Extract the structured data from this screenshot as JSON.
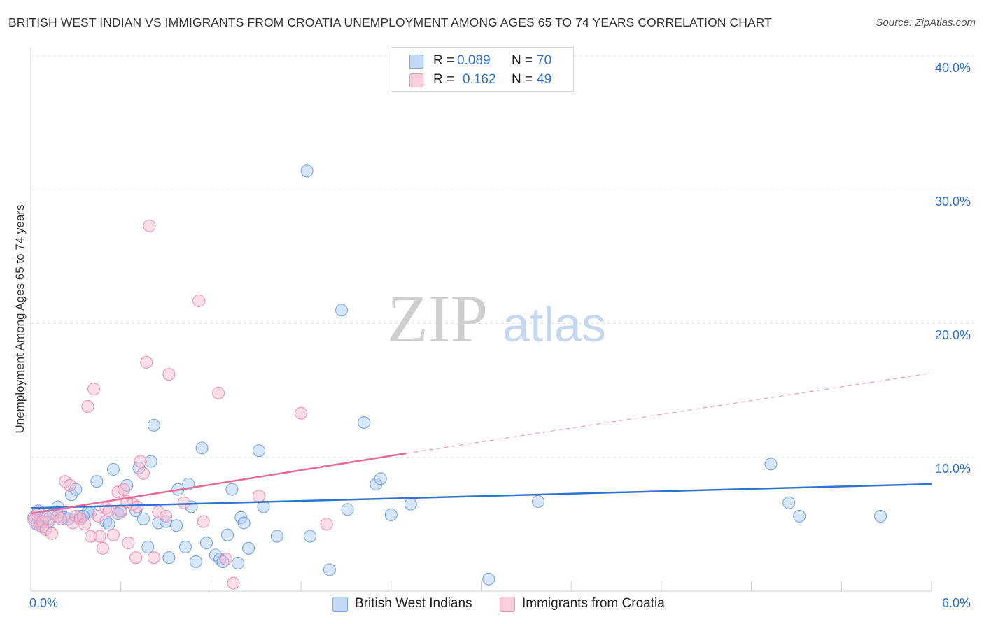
{
  "title": "BRITISH WEST INDIAN VS IMMIGRANTS FROM CROATIA UNEMPLOYMENT AMONG AGES 65 TO 74 YEARS CORRELATION CHART",
  "source": "Source: ZipAtlas.com",
  "watermark": {
    "zip": "ZIP",
    "atlas": "atlas"
  },
  "legend_top": {
    "rows": [
      {
        "r_label": "R =",
        "r_value": "0.089",
        "n_label": "N =",
        "n_value": "70",
        "color": "#a9c8f5"
      },
      {
        "r_label": "R =",
        "r_value": "0.162",
        "n_label": "N =",
        "n_value": "49",
        "color": "#f7b8cc"
      }
    ]
  },
  "legend_bottom": {
    "items": [
      {
        "label": "British West Indians",
        "color": "#a9c8f5"
      },
      {
        "label": "Immigrants from Croatia",
        "color": "#f7b8cc"
      }
    ]
  },
  "chart_data": {
    "type": "scatter",
    "title": "BRITISH WEST INDIAN VS IMMIGRANTS FROM CROATIA UNEMPLOYMENT AMONG AGES 65 TO 74 YEARS CORRELATION CHART",
    "xlabel": "",
    "ylabel": "Unemployment Among Ages 65 to 74 years",
    "xlim": [
      0,
      6
    ],
    "ylim": [
      0,
      40
    ],
    "x_tick_labels": [
      "0.0%",
      "6.0%"
    ],
    "y_tick_labels": [
      "10.0%",
      "20.0%",
      "30.0%",
      "40.0%"
    ],
    "y_ticks": [
      10,
      20,
      30,
      40
    ],
    "x_minor_ticks": [
      0.6,
      1.2,
      1.8,
      2.4,
      3.0,
      3.6,
      4.2,
      4.8,
      5.4,
      6.0
    ],
    "grid": true,
    "series": [
      {
        "name": "British West Indians",
        "color": "#a9c8f5",
        "stroke": "#6d9fe0",
        "trend": {
          "x0": 0,
          "y0": 6.2,
          "x1": 6,
          "y1": 8.0,
          "color": "#2f74d0",
          "dashed_from": null
        },
        "points": [
          [
            0.02,
            5.5
          ],
          [
            0.04,
            5.0
          ],
          [
            0.05,
            6.0
          ],
          [
            0.06,
            5.3
          ],
          [
            0.08,
            4.8
          ],
          [
            0.1,
            5.6
          ],
          [
            0.12,
            5.2
          ],
          [
            0.15,
            5.8
          ],
          [
            0.18,
            6.3
          ],
          [
            0.2,
            5.9
          ],
          [
            0.22,
            5.5
          ],
          [
            0.25,
            5.4
          ],
          [
            0.27,
            7.2
          ],
          [
            0.3,
            7.6
          ],
          [
            0.33,
            5.6
          ],
          [
            0.38,
            5.9
          ],
          [
            0.4,
            5.9
          ],
          [
            0.44,
            8.2
          ],
          [
            0.5,
            5.2
          ],
          [
            0.52,
            5.0
          ],
          [
            0.55,
            9.1
          ],
          [
            0.58,
            5.8
          ],
          [
            0.6,
            6.0
          ],
          [
            0.64,
            7.9
          ],
          [
            0.7,
            6.0
          ],
          [
            0.72,
            9.2
          ],
          [
            0.75,
            5.4
          ],
          [
            0.78,
            3.3
          ],
          [
            0.8,
            9.7
          ],
          [
            0.82,
            12.4
          ],
          [
            0.85,
            5.1
          ],
          [
            0.9,
            5.2
          ],
          [
            0.92,
            2.5
          ],
          [
            0.97,
            4.9
          ],
          [
            0.98,
            7.6
          ],
          [
            1.03,
            3.3
          ],
          [
            1.05,
            8.0
          ],
          [
            1.07,
            6.3
          ],
          [
            1.1,
            2.2
          ],
          [
            1.14,
            10.7
          ],
          [
            1.17,
            3.6
          ],
          [
            1.23,
            2.7
          ],
          [
            1.26,
            2.4
          ],
          [
            1.28,
            2.2
          ],
          [
            1.31,
            4.2
          ],
          [
            1.34,
            7.6
          ],
          [
            1.38,
            2.1
          ],
          [
            1.4,
            5.5
          ],
          [
            1.42,
            5.1
          ],
          [
            1.45,
            3.2
          ],
          [
            1.52,
            10.5
          ],
          [
            1.55,
            6.3
          ],
          [
            1.64,
            4.1
          ],
          [
            1.84,
            31.4
          ],
          [
            1.86,
            4.1
          ],
          [
            1.99,
            1.6
          ],
          [
            2.07,
            21.0
          ],
          [
            2.11,
            6.1
          ],
          [
            2.22,
            12.6
          ],
          [
            2.3,
            8.0
          ],
          [
            2.33,
            8.4
          ],
          [
            2.4,
            5.7
          ],
          [
            2.53,
            6.5
          ],
          [
            3.05,
            0.9
          ],
          [
            3.38,
            6.7
          ],
          [
            4.93,
            9.5
          ],
          [
            5.05,
            6.6
          ],
          [
            5.12,
            5.6
          ],
          [
            5.66,
            5.6
          ],
          [
            0.35,
            5.6
          ]
        ]
      },
      {
        "name": "Immigrants from Croatia",
        "color": "#f7b8cc",
        "stroke": "#eb8aa9",
        "trend": {
          "x0": 0,
          "y0": 5.8,
          "x1": 2.5,
          "y1": 10.3,
          "color": "#e56b94",
          "ext_x1": 6,
          "ext_y1": 16.3
        },
        "points": [
          [
            0.02,
            5.3
          ],
          [
            0.04,
            5.7
          ],
          [
            0.06,
            4.9
          ],
          [
            0.08,
            5.2
          ],
          [
            0.1,
            4.6
          ],
          [
            0.12,
            5.4
          ],
          [
            0.14,
            4.3
          ],
          [
            0.18,
            5.6
          ],
          [
            0.2,
            5.4
          ],
          [
            0.23,
            8.2
          ],
          [
            0.26,
            7.9
          ],
          [
            0.28,
            5.1
          ],
          [
            0.3,
            5.6
          ],
          [
            0.33,
            5.4
          ],
          [
            0.36,
            5.0
          ],
          [
            0.38,
            13.8
          ],
          [
            0.4,
            4.1
          ],
          [
            0.42,
            15.1
          ],
          [
            0.45,
            5.6
          ],
          [
            0.46,
            4.1
          ],
          [
            0.48,
            3.2
          ],
          [
            0.5,
            6.2
          ],
          [
            0.52,
            6.0
          ],
          [
            0.55,
            4.2
          ],
          [
            0.58,
            7.4
          ],
          [
            0.6,
            5.9
          ],
          [
            0.62,
            7.6
          ],
          [
            0.64,
            6.7
          ],
          [
            0.65,
            3.6
          ],
          [
            0.68,
            6.5
          ],
          [
            0.7,
            2.5
          ],
          [
            0.71,
            6.3
          ],
          [
            0.73,
            9.7
          ],
          [
            0.75,
            8.8
          ],
          [
            0.77,
            17.1
          ],
          [
            0.79,
            27.3
          ],
          [
            0.82,
            2.5
          ],
          [
            0.85,
            5.9
          ],
          [
            0.9,
            5.6
          ],
          [
            0.92,
            16.2
          ],
          [
            1.02,
            6.6
          ],
          [
            1.12,
            21.7
          ],
          [
            1.15,
            5.2
          ],
          [
            1.25,
            14.8
          ],
          [
            1.3,
            2.4
          ],
          [
            1.35,
            0.6
          ],
          [
            1.52,
            7.1
          ],
          [
            1.8,
            13.3
          ],
          [
            1.97,
            5.0
          ]
        ]
      }
    ]
  }
}
